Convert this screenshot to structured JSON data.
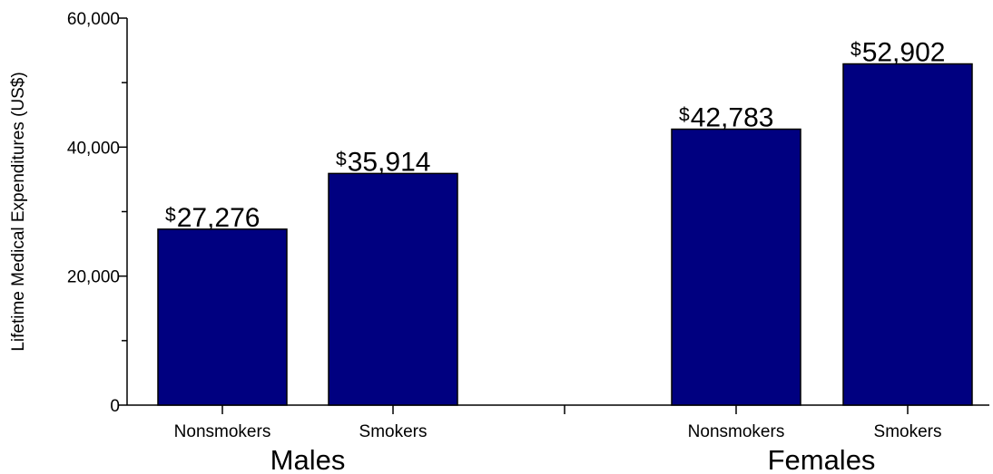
{
  "chart_data": {
    "type": "bar",
    "ylabel": "Lifetime Medical Expenditures (US$)",
    "ylim": [
      0,
      60000
    ],
    "yticks": [
      0,
      20000,
      40000,
      60000
    ],
    "ytick_labels": [
      "0",
      "20,000",
      "40,000",
      "60,000"
    ],
    "grid": false,
    "bar_color": "#000080",
    "groups": [
      {
        "label": "Males",
        "bars": [
          {
            "category": "Nonsmokers",
            "value": 27276,
            "currency": "$",
            "value_label": "27,276"
          },
          {
            "category": "Smokers",
            "value": 35914,
            "currency": "$",
            "value_label": "35,914"
          }
        ]
      },
      {
        "label": "Females",
        "bars": [
          {
            "category": "Nonsmokers",
            "value": 42783,
            "currency": "$",
            "value_label": "42,783"
          },
          {
            "category": "Smokers",
            "value": 52902,
            "currency": "$",
            "value_label": "52,902"
          }
        ]
      }
    ]
  }
}
